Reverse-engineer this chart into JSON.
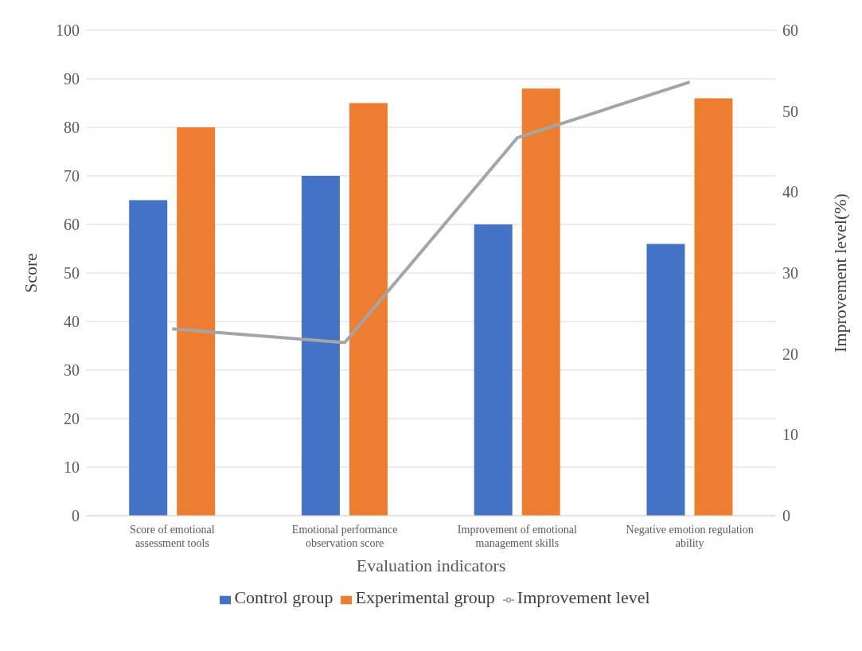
{
  "chart_data": {
    "type": "bar",
    "xlabel": "Evaluation indicators",
    "ylabel": "Score",
    "y2label": "Improvement level(%)",
    "categories": [
      "Score of emotional assessment tools",
      "Emotional performance observation score",
      "Improvement of emotional management skills",
      "Negative emotion regulation ability"
    ],
    "series": [
      {
        "name": "Control group",
        "color": "#4472c4",
        "values": [
          65,
          70,
          60,
          56
        ]
      },
      {
        "name": "Experimental group",
        "color": "#ed7d31",
        "values": [
          80,
          85,
          88,
          86
        ]
      },
      {
        "name": "Improvement level",
        "type": "line",
        "axis": "y2",
        "color": "#a5a5a5",
        "values": [
          23.1,
          21.4,
          46.7,
          53.6
        ]
      }
    ],
    "ylim": [
      0,
      100
    ],
    "yticks": [
      0,
      10,
      20,
      30,
      40,
      50,
      60,
      70,
      80,
      90,
      100
    ],
    "y2lim": [
      0,
      60
    ],
    "y2ticks": [
      0,
      10,
      20,
      30,
      40,
      50,
      60
    ],
    "grid": "y",
    "legend": "bottom",
    "marker": "none"
  }
}
